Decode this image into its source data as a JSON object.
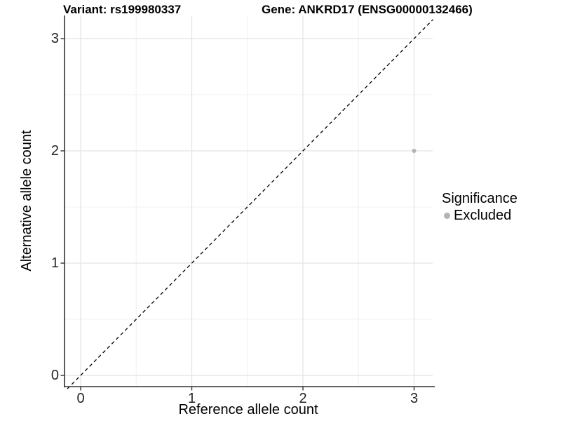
{
  "titles": {
    "left": "Variant: rs199980337",
    "right": "Gene: ANKRD17 (ENSG00000132466)"
  },
  "chart_data": {
    "type": "scatter",
    "title": "Variant: rs199980337   Gene: ANKRD17 (ENSG00000132466)",
    "xlabel": "Reference allele count",
    "ylabel": "Alternative allele count",
    "xlim": [
      -0.14,
      3.17
    ],
    "ylim": [
      -0.12,
      3.2
    ],
    "x_ticks": [
      0,
      1,
      2,
      3
    ],
    "y_ticks": [
      0,
      1,
      2,
      3
    ],
    "minor_ticks_x": [
      0.5,
      1.5,
      2.5
    ],
    "minor_ticks_y": [
      0.5,
      1.5,
      2.5
    ],
    "grid": "major and minor, light gray on white",
    "reference_line": {
      "equation": "y = x",
      "style": "dashed",
      "color": "#000000"
    },
    "series": [
      {
        "name": "Excluded",
        "color": "#b3b3b3",
        "marker_radius": 3,
        "points": [
          {
            "x": 3,
            "y": 2
          }
        ]
      }
    ],
    "legend": {
      "title": "Significance",
      "position": "right",
      "entries": [
        {
          "label": "Excluded",
          "color": "#b3b3b3"
        }
      ]
    },
    "colors": {
      "background": "#ffffff",
      "grid_major": "#e3e3e3",
      "grid_minor": "#f0f0f0",
      "axis_line": "#333333",
      "tick_mark": "#333333",
      "tick_label": "#262626",
      "axis_title": "#000000",
      "title": "#000000"
    }
  }
}
